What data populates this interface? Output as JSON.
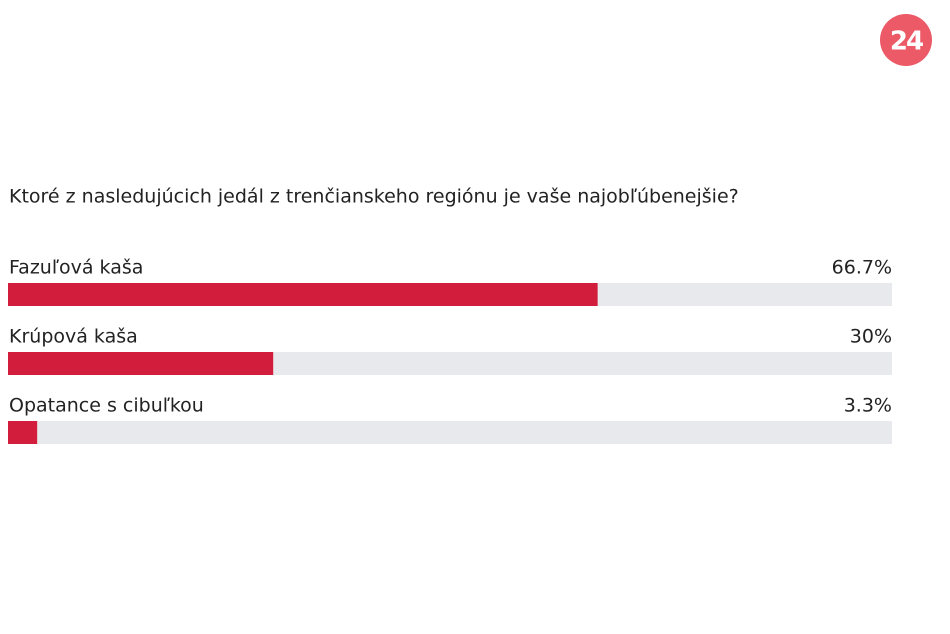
{
  "logo": "24",
  "chart_data": {
    "type": "bar",
    "orientation": "horizontal",
    "title": "Ktoré z nasledujúcich jedál z trenčianskeho regiónu je vaše najobľúbenejšie?",
    "categories": [
      "Fazuľová kaša",
      "Krúpová kaša",
      "Opatance s cibuľkou"
    ],
    "values": [
      66.7,
      30,
      3.3
    ],
    "value_labels": [
      "66.7%",
      "30%",
      "3.3%"
    ],
    "color": "#d21d3c",
    "xlim": [
      0,
      100
    ]
  }
}
